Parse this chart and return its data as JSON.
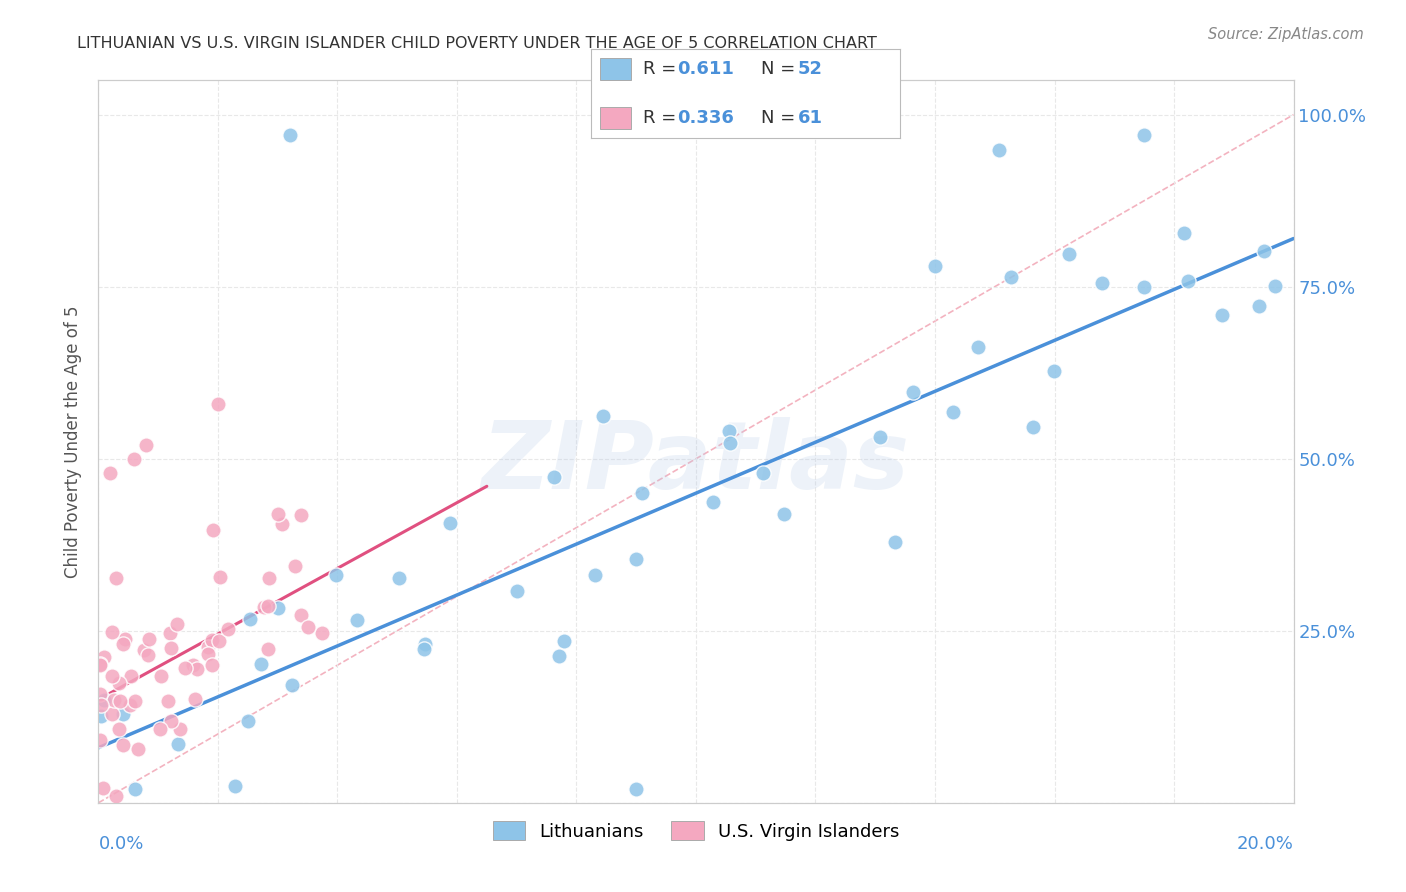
{
  "title": "LITHUANIAN VS U.S. VIRGIN ISLANDER CHILD POVERTY UNDER THE AGE OF 5 CORRELATION CHART",
  "source": "Source: ZipAtlas.com",
  "ylabel": "Child Poverty Under the Age of 5",
  "legend_entry1": {
    "label": "Lithuanians",
    "R": 0.611,
    "N": 52,
    "color": "#8ec4e8"
  },
  "legend_entry2": {
    "label": "U.S. Virgin Islanders",
    "R": 0.336,
    "N": 61,
    "color": "#f4a8c0"
  },
  "watermark": "ZIPatlas",
  "blue_color": "#8ec4e8",
  "pink_color": "#f4a8c0",
  "blue_trend_color": "#4a90d9",
  "pink_trend_color": "#e05080",
  "diag_color": "#f0a0b0",
  "axis_label_color": "#4a90d9",
  "text_color": "#333333",
  "source_color": "#888888",
  "grid_color": "#e8e8e8",
  "background_color": "#ffffff",
  "blue_line_x": [
    0.0,
    0.2
  ],
  "blue_line_y": [
    0.08,
    0.82
  ],
  "pink_line_x": [
    0.0,
    0.065
  ],
  "pink_line_y": [
    0.15,
    0.46
  ],
  "diag_line_x": [
    0.0,
    0.2
  ],
  "diag_line_y": [
    0.0,
    1.0
  ],
  "right_ytick_positions": [
    0.0,
    0.25,
    0.5,
    0.75,
    1.0
  ],
  "right_yticklabels": [
    "",
    "25.0%",
    "50.0%",
    "75.0%",
    "100.0%"
  ],
  "xlim": [
    0.0,
    0.2
  ],
  "ylim": [
    0.0,
    1.05
  ]
}
